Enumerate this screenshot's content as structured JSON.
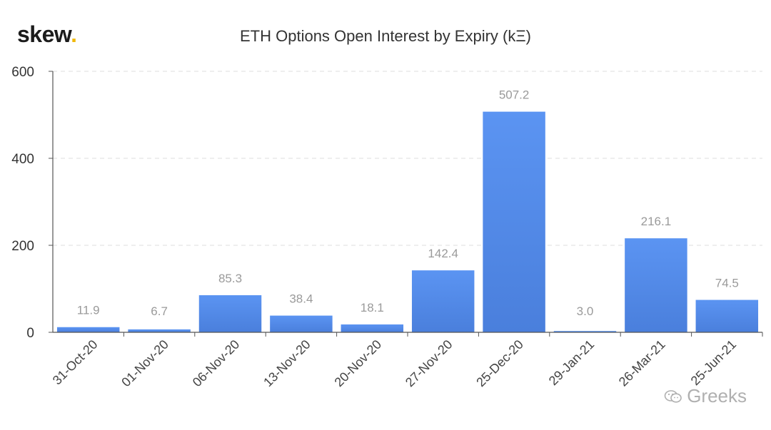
{
  "logo": {
    "text": "skew",
    "dot": "."
  },
  "watermark": {
    "text": "Greeks",
    "icon": "wechat-icon"
  },
  "chart_data": {
    "type": "bar",
    "title": "ETH Options Open Interest by Expiry (kΞ)",
    "xlabel": "",
    "ylabel": "",
    "ylim": [
      0,
      600
    ],
    "yticks": [
      0,
      200,
      400,
      600
    ],
    "grid": true,
    "categories": [
      "31-Oct-20",
      "01-Nov-20",
      "06-Nov-20",
      "13-Nov-20",
      "20-Nov-20",
      "27-Nov-20",
      "25-Dec-20",
      "29-Jan-21",
      "26-Mar-21",
      "25-Jun-21"
    ],
    "values": [
      11.9,
      6.7,
      85.3,
      38.4,
      18.1,
      142.4,
      507.2,
      3.0,
      216.1,
      74.5
    ],
    "value_labels": [
      "11.9",
      "6.7",
      "85.3",
      "38.4",
      "18.1",
      "142.4",
      "507.2",
      "3.0",
      "216.1",
      "74.5"
    ],
    "bar_color_top": "#5b94f2",
    "bar_color_bottom": "#4a7fdc"
  }
}
